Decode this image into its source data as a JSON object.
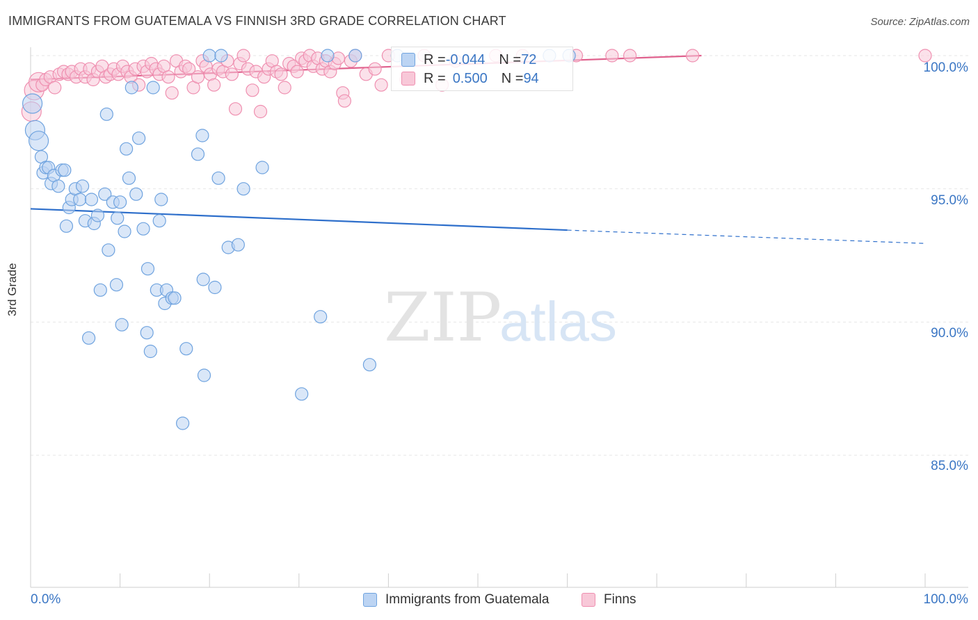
{
  "title": "IMMIGRANTS FROM GUATEMALA VS FINNISH 3RD GRADE CORRELATION CHART",
  "source": "Source: ZipAtlas.com",
  "watermark": {
    "zip": "ZIP",
    "atlas": "atlas"
  },
  "stats": {
    "blue": {
      "r_label": "R = ",
      "r_value": "-0.044",
      "n_label": "N = ",
      "n_value": "72"
    },
    "pink": {
      "r_label": "R = ",
      "r_value": "0.500",
      "n_label": "N = ",
      "n_value": "94"
    }
  },
  "colors": {
    "blue": "#6fa3df",
    "blue_fill": "#bcd4f3",
    "blue_line": "#2e6fcb",
    "pink": "#ef8fb0",
    "pink_fill": "#f8c8d8",
    "pink_line": "#e0628e",
    "tick_text": "#3a76c4"
  },
  "chart_data": {
    "type": "scatter",
    "title": "IMMIGRANTS FROM GUATEMALA VS FINNISH 3RD GRADE CORRELATION CHART",
    "xlabel": "",
    "ylabel": "3rd Grade",
    "xlim": [
      0,
      100
    ],
    "ylim": [
      80.5,
      100.7
    ],
    "x_tick_labels": [
      "0.0%",
      "100.0%"
    ],
    "y_ticks": [
      85,
      90,
      95,
      100
    ],
    "y_tick_labels": [
      "85.0%",
      "90.0%",
      "95.0%",
      "100.0%"
    ],
    "grid": true,
    "legend_position": "bottom-center",
    "series": [
      {
        "name": "Immigrants from Guatemala",
        "color": "#6fa3df",
        "trend": {
          "x": [
            0,
            60,
            100
          ],
          "y": [
            94.25,
            93.45,
            92.95
          ],
          "dashed_from": 60
        },
        "points": [
          [
            0.2,
            98.2
          ],
          [
            0.5,
            97.2
          ],
          [
            0.9,
            96.8
          ],
          [
            1.2,
            96.2
          ],
          [
            1.4,
            95.6
          ],
          [
            1.7,
            95.8
          ],
          [
            2.0,
            95.8
          ],
          [
            2.3,
            95.2
          ],
          [
            2.6,
            95.5
          ],
          [
            3.1,
            95.1
          ],
          [
            3.5,
            95.7
          ],
          [
            3.8,
            95.7
          ],
          [
            4.0,
            93.6
          ],
          [
            4.3,
            94.3
          ],
          [
            4.6,
            94.6
          ],
          [
            5.0,
            95.0
          ],
          [
            5.5,
            94.6
          ],
          [
            5.8,
            95.1
          ],
          [
            6.1,
            93.8
          ],
          [
            6.5,
            89.4
          ],
          [
            6.8,
            94.6
          ],
          [
            7.1,
            93.7
          ],
          [
            7.5,
            94.0
          ],
          [
            7.8,
            91.2
          ],
          [
            8.3,
            94.8
          ],
          [
            8.5,
            97.8
          ],
          [
            8.7,
            92.7
          ],
          [
            9.2,
            94.5
          ],
          [
            9.6,
            91.4
          ],
          [
            9.7,
            93.9
          ],
          [
            10.0,
            94.5
          ],
          [
            10.2,
            89.9
          ],
          [
            10.5,
            93.4
          ],
          [
            10.7,
            96.5
          ],
          [
            11.0,
            95.4
          ],
          [
            11.3,
            98.8
          ],
          [
            11.8,
            94.8
          ],
          [
            12.1,
            96.9
          ],
          [
            12.6,
            93.5
          ],
          [
            13.0,
            89.6
          ],
          [
            13.1,
            92.0
          ],
          [
            13.4,
            88.9
          ],
          [
            13.7,
            98.8
          ],
          [
            14.1,
            91.2
          ],
          [
            14.6,
            94.6
          ],
          [
            14.4,
            93.8
          ],
          [
            15.0,
            90.7
          ],
          [
            15.2,
            91.2
          ],
          [
            15.8,
            90.9
          ],
          [
            16.1,
            90.9
          ],
          [
            17.0,
            86.2
          ],
          [
            17.4,
            89.0
          ],
          [
            18.7,
            96.3
          ],
          [
            19.2,
            97.0
          ],
          [
            19.3,
            91.6
          ],
          [
            19.4,
            88.0
          ],
          [
            20.0,
            100.0
          ],
          [
            20.6,
            91.3
          ],
          [
            21.0,
            95.4
          ],
          [
            21.3,
            100.0
          ],
          [
            22.1,
            92.8
          ],
          [
            23.2,
            92.9
          ],
          [
            23.8,
            95.0
          ],
          [
            25.9,
            95.8
          ],
          [
            30.3,
            87.3
          ],
          [
            32.4,
            90.2
          ],
          [
            33.2,
            100.0
          ],
          [
            36.3,
            100.0
          ],
          [
            37.9,
            88.4
          ],
          [
            41.0,
            100.0
          ],
          [
            58.0,
            100.0
          ],
          [
            60.2,
            100.0
          ]
        ]
      },
      {
        "name": "Finns",
        "color": "#ef8fb0",
        "trend": {
          "x": [
            0,
            75
          ],
          "y": [
            99.1,
            100.0
          ]
        },
        "points": [
          [
            0.1,
            97.9
          ],
          [
            0.4,
            98.7
          ],
          [
            0.9,
            99.0
          ],
          [
            1.3,
            98.9
          ],
          [
            1.7,
            99.1
          ],
          [
            2.2,
            99.2
          ],
          [
            2.7,
            98.8
          ],
          [
            3.2,
            99.3
          ],
          [
            3.7,
            99.4
          ],
          [
            4.2,
            99.3
          ],
          [
            4.6,
            99.4
          ],
          [
            5.1,
            99.2
          ],
          [
            5.6,
            99.5
          ],
          [
            6.1,
            99.2
          ],
          [
            6.6,
            99.5
          ],
          [
            7.0,
            99.1
          ],
          [
            7.5,
            99.4
          ],
          [
            8.0,
            99.6
          ],
          [
            8.4,
            99.2
          ],
          [
            8.9,
            99.3
          ],
          [
            9.3,
            99.5
          ],
          [
            9.8,
            99.3
          ],
          [
            10.3,
            99.6
          ],
          [
            10.8,
            99.4
          ],
          [
            11.2,
            99.2
          ],
          [
            11.7,
            99.5
          ],
          [
            12.1,
            98.9
          ],
          [
            12.6,
            99.6
          ],
          [
            13.0,
            99.4
          ],
          [
            13.5,
            99.7
          ],
          [
            14.0,
            99.5
          ],
          [
            14.4,
            99.3
          ],
          [
            14.9,
            99.6
          ],
          [
            15.4,
            99.2
          ],
          [
            15.8,
            98.6
          ],
          [
            16.3,
            99.8
          ],
          [
            16.8,
            99.4
          ],
          [
            17.3,
            99.6
          ],
          [
            17.7,
            99.5
          ],
          [
            18.2,
            98.8
          ],
          [
            18.7,
            99.2
          ],
          [
            19.2,
            99.8
          ],
          [
            19.6,
            99.6
          ],
          [
            20.1,
            99.3
          ],
          [
            20.5,
            98.9
          ],
          [
            21.0,
            99.5
          ],
          [
            21.5,
            99.4
          ],
          [
            22.0,
            99.8
          ],
          [
            22.5,
            99.3
          ],
          [
            22.9,
            98.0
          ],
          [
            23.4,
            99.7
          ],
          [
            23.8,
            100.0
          ],
          [
            24.3,
            99.5
          ],
          [
            24.8,
            98.7
          ],
          [
            25.2,
            99.4
          ],
          [
            25.7,
            97.9
          ],
          [
            26.1,
            99.2
          ],
          [
            26.6,
            99.5
          ],
          [
            27.0,
            99.8
          ],
          [
            27.5,
            99.4
          ],
          [
            28.0,
            99.3
          ],
          [
            28.4,
            98.8
          ],
          [
            28.9,
            99.7
          ],
          [
            29.4,
            99.6
          ],
          [
            29.8,
            99.4
          ],
          [
            30.3,
            99.9
          ],
          [
            30.7,
            99.8
          ],
          [
            31.2,
            100.0
          ],
          [
            31.6,
            99.6
          ],
          [
            32.1,
            99.9
          ],
          [
            32.6,
            99.5
          ],
          [
            33.0,
            99.8
          ],
          [
            33.5,
            99.4
          ],
          [
            34.0,
            99.7
          ],
          [
            34.4,
            99.9
          ],
          [
            34.9,
            98.6
          ],
          [
            35.1,
            98.3
          ],
          [
            35.8,
            99.8
          ],
          [
            36.3,
            100.0
          ],
          [
            37.5,
            99.3
          ],
          [
            38.5,
            99.5
          ],
          [
            39.2,
            98.9
          ],
          [
            40.0,
            100.0
          ],
          [
            42.0,
            99.1
          ],
          [
            44.0,
            100.0
          ],
          [
            46.0,
            98.9
          ],
          [
            47.5,
            99.8
          ],
          [
            52.0,
            100.0
          ],
          [
            55.0,
            100.0
          ],
          [
            61.0,
            100.0
          ],
          [
            65.0,
            100.0
          ],
          [
            67.0,
            100.0
          ],
          [
            74.0,
            100.0
          ],
          [
            100.0,
            100.0
          ]
        ]
      }
    ]
  },
  "legend": {
    "blue_label": "Immigrants from Guatemala",
    "pink_label": "Finns"
  }
}
